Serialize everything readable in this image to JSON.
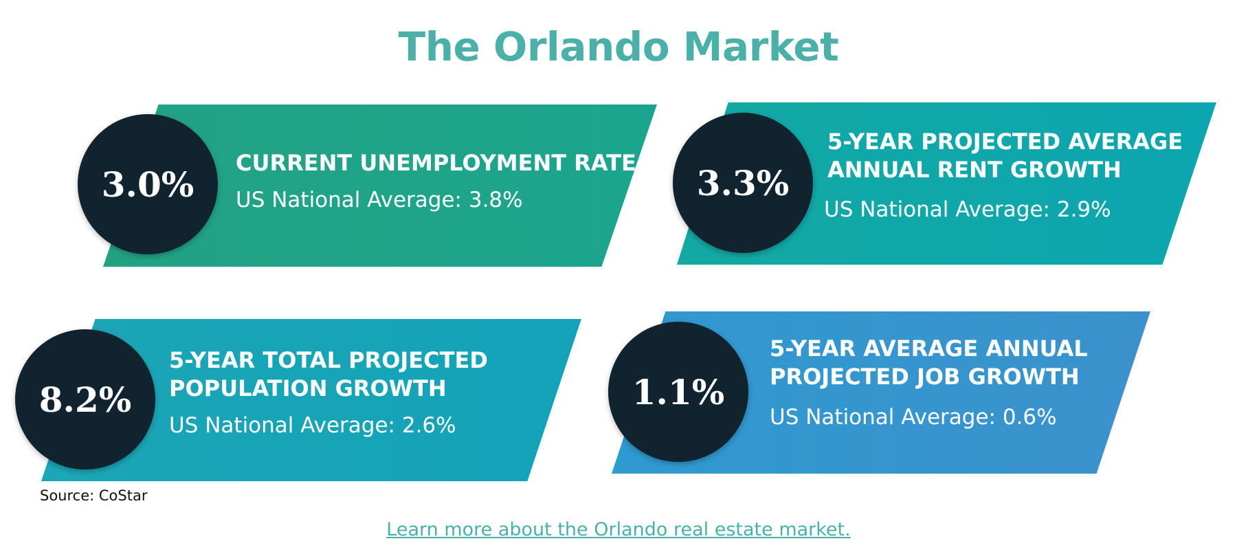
{
  "page": {
    "title": "The Orlando Market",
    "source": "Source: CoStar",
    "link_text": "Learn more about the Orlando real estate market."
  },
  "stats": [
    {
      "value": "3.0%",
      "heading_lines": [
        "CURRENT UNEMPLOYMENT RATE"
      ],
      "comparison": "US National Average: 3.8%",
      "color": "#1fa388"
    },
    {
      "value": "3.3%",
      "heading_lines": [
        "5-YEAR PROJECTED AVERAGE",
        "ANNUAL RENT GROWTH"
      ],
      "comparison": "US National Average: 2.9%",
      "color": "#0fa7aa"
    },
    {
      "value": "8.2%",
      "heading_lines": [
        "5-YEAR TOTAL PROJECTED",
        "POPULATION GROWTH"
      ],
      "comparison": "US National Average: 2.6%",
      "color": "#18a4b7"
    },
    {
      "value": "1.1%",
      "heading_lines": [
        "5-YEAR AVERAGE ANNUAL",
        "PROJECTED JOB GROWTH"
      ],
      "comparison": "US National Average: 0.6%",
      "color": "#3596ce"
    }
  ],
  "colors": {
    "title": "#4bb0a8",
    "circle": "#10232f",
    "link": "#4bb0a8"
  }
}
